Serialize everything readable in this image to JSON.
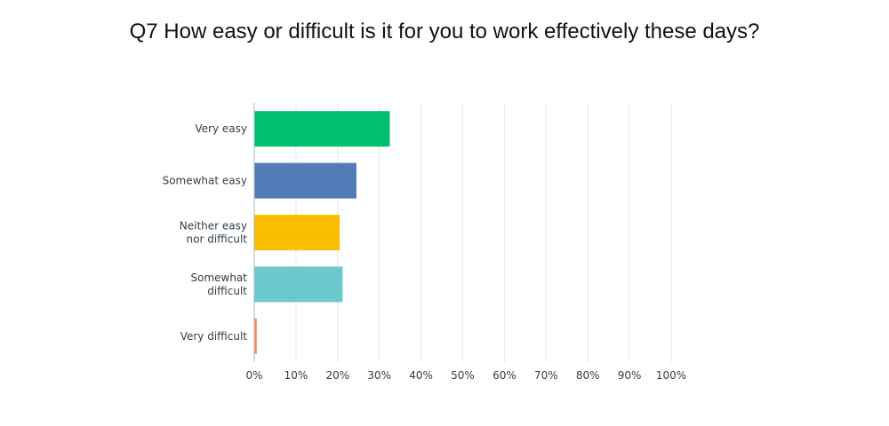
{
  "chart_data": {
    "type": "bar",
    "orientation": "horizontal",
    "title": "Q7 How easy or difficult is it for you to work effectively these days?",
    "categories": [
      [
        "Very easy"
      ],
      [
        "Somewhat easy"
      ],
      [
        "Neither easy",
        "nor difficult"
      ],
      [
        "Somewhat",
        "difficult"
      ],
      [
        "Very difficult"
      ]
    ],
    "values": [
      32.5,
      24.5,
      20.5,
      21.2,
      0.6
    ],
    "colors": [
      "#00bf6f",
      "#507cb6",
      "#f9be00",
      "#6bc8cd",
      "#ff8b4f"
    ],
    "xlim": [
      0,
      100
    ],
    "xticks": [
      "0%",
      "10%",
      "20%",
      "30%",
      "40%",
      "50%",
      "60%",
      "70%",
      "80%",
      "90%",
      "100%"
    ],
    "grid": "vertical"
  }
}
